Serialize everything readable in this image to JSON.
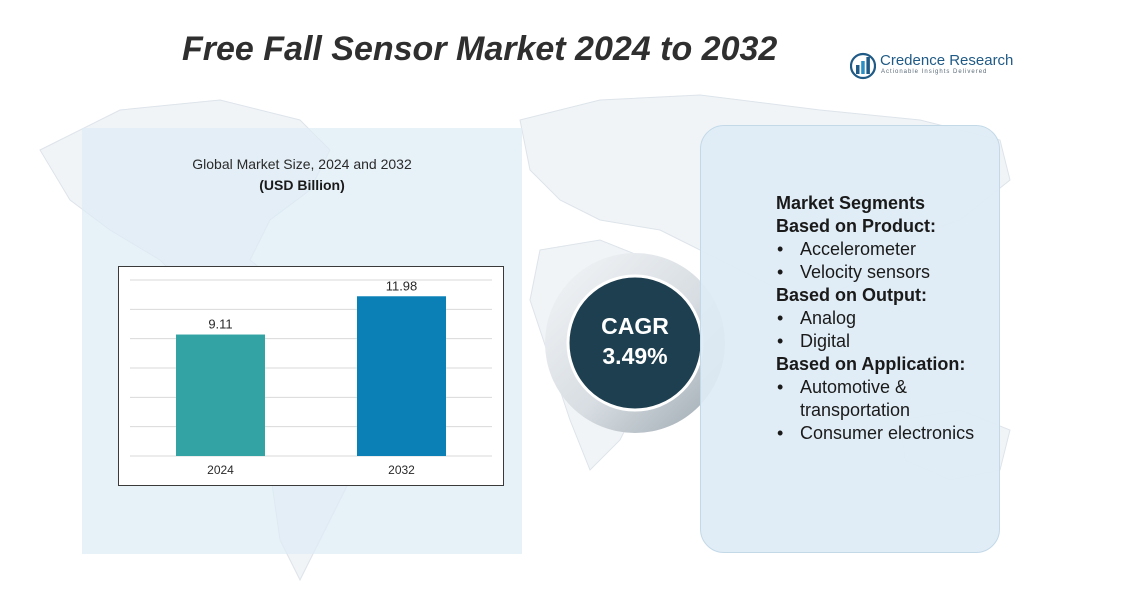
{
  "title": "Free Fall Sensor Market 2024 to 2032",
  "logo": {
    "name": "Credence Research",
    "tagline": "Actionable Insights Delivered",
    "icon": "bar-chart-logo-icon"
  },
  "chart_panel": {
    "heading": "Global Market Size, 2024 and 2032",
    "unit": "(USD Billion)"
  },
  "chart_data": {
    "type": "bar",
    "categories": [
      "2024",
      "2032"
    ],
    "values": [
      9.11,
      11.98
    ],
    "value_labels": [
      "9.11",
      "11.98"
    ],
    "colors": [
      "#33a3a3",
      "#0a80b6"
    ],
    "title": "Global Market Size, 2024 and 2032",
    "ylabel": "(USD Billion)",
    "ylim": [
      0,
      13.2
    ],
    "grid": true,
    "legend": "none"
  },
  "cagr": {
    "label": "CAGR",
    "value": "3.49%"
  },
  "segments": {
    "title": "Market Segments",
    "groups": [
      {
        "heading": "Based on Product:",
        "items": [
          "Accelerometer",
          "Velocity sensors"
        ]
      },
      {
        "heading": "Based on Output:",
        "items": [
          "Analog",
          "Digital"
        ]
      },
      {
        "heading": "Based on Application:",
        "items": [
          "Automotive & transportation",
          "Consumer electronics"
        ]
      }
    ]
  },
  "colors": {
    "panel_bg": "#deecf5",
    "cagr_circle": "#1d3f4f",
    "title_text": "#2f2f2f"
  }
}
